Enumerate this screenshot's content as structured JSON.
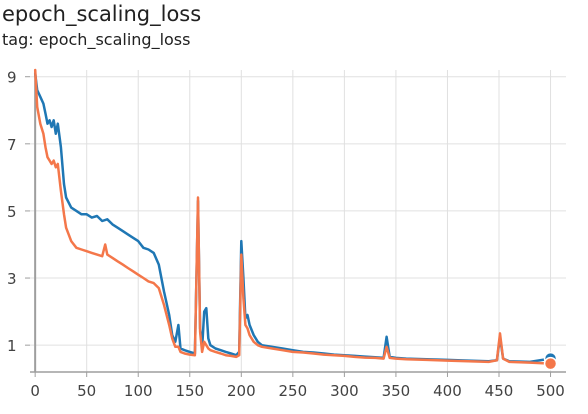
{
  "header": {
    "title": "epoch_scaling_loss",
    "tag": "tag: epoch_scaling_loss"
  },
  "colors": {
    "series_1": "#1f77b4",
    "series_2": "#f4774a",
    "grid": "#e0e0e0",
    "axis": "#9e9e9e"
  },
  "chart_data": {
    "type": "line",
    "title": "epoch_scaling_loss",
    "xlabel": "",
    "ylabel": "",
    "xlim": [
      -5,
      515
    ],
    "ylim": [
      0.2,
      9.2
    ],
    "x_ticks": [
      0,
      50,
      100,
      150,
      200,
      250,
      300,
      350,
      400,
      450,
      500
    ],
    "y_ticks": [
      1,
      3,
      5,
      7,
      9
    ],
    "grid": true,
    "legend": "none",
    "series": [
      {
        "color": "#1f77b4",
        "end_marker": true,
        "points": [
          [
            0,
            9.1
          ],
          [
            2,
            8.6
          ],
          [
            5,
            8.4
          ],
          [
            8,
            8.2
          ],
          [
            10,
            7.9
          ],
          [
            12,
            7.6
          ],
          [
            14,
            7.7
          ],
          [
            16,
            7.5
          ],
          [
            18,
            7.7
          ],
          [
            20,
            7.3
          ],
          [
            22,
            7.6
          ],
          [
            25,
            6.9
          ],
          [
            28,
            5.8
          ],
          [
            30,
            5.4
          ],
          [
            35,
            5.1
          ],
          [
            40,
            5.0
          ],
          [
            45,
            4.9
          ],
          [
            50,
            4.9
          ],
          [
            55,
            4.8
          ],
          [
            60,
            4.85
          ],
          [
            65,
            4.7
          ],
          [
            70,
            4.75
          ],
          [
            75,
            4.6
          ],
          [
            80,
            4.5
          ],
          [
            85,
            4.4
          ],
          [
            90,
            4.3
          ],
          [
            95,
            4.2
          ],
          [
            100,
            4.1
          ],
          [
            105,
            3.9
          ],
          [
            110,
            3.85
          ],
          [
            115,
            3.75
          ],
          [
            120,
            3.4
          ],
          [
            125,
            2.6
          ],
          [
            130,
            1.9
          ],
          [
            133,
            1.3
          ],
          [
            136,
            1.1
          ],
          [
            139,
            1.6
          ],
          [
            141,
            0.9
          ],
          [
            145,
            0.85
          ],
          [
            150,
            0.8
          ],
          [
            155,
            0.75
          ],
          [
            158,
            5.3
          ],
          [
            160,
            1.5
          ],
          [
            162,
            0.9
          ],
          [
            164,
            2.0
          ],
          [
            166,
            2.1
          ],
          [
            168,
            1.2
          ],
          [
            170,
            1.0
          ],
          [
            175,
            0.9
          ],
          [
            180,
            0.85
          ],
          [
            185,
            0.8
          ],
          [
            190,
            0.75
          ],
          [
            195,
            0.7
          ],
          [
            198,
            0.8
          ],
          [
            200,
            4.1
          ],
          [
            202,
            3.0
          ],
          [
            204,
            1.8
          ],
          [
            206,
            1.9
          ],
          [
            208,
            1.6
          ],
          [
            212,
            1.3
          ],
          [
            216,
            1.1
          ],
          [
            220,
            1.0
          ],
          [
            230,
            0.95
          ],
          [
            240,
            0.9
          ],
          [
            250,
            0.85
          ],
          [
            260,
            0.8
          ],
          [
            270,
            0.78
          ],
          [
            280,
            0.75
          ],
          [
            290,
            0.72
          ],
          [
            300,
            0.7
          ],
          [
            310,
            0.68
          ],
          [
            320,
            0.66
          ],
          [
            330,
            0.64
          ],
          [
            338,
            0.62
          ],
          [
            341,
            1.25
          ],
          [
            344,
            0.65
          ],
          [
            350,
            0.62
          ],
          [
            360,
            0.6
          ],
          [
            380,
            0.58
          ],
          [
            400,
            0.56
          ],
          [
            420,
            0.54
          ],
          [
            440,
            0.52
          ],
          [
            448,
            0.55
          ],
          [
            451,
            1.25
          ],
          [
            454,
            0.6
          ],
          [
            460,
            0.52
          ],
          [
            480,
            0.5
          ],
          [
            500,
            0.6
          ]
        ]
      },
      {
        "color": "#f4774a",
        "end_marker": true,
        "points": [
          [
            0,
            9.2
          ],
          [
            2,
            8.1
          ],
          [
            5,
            7.6
          ],
          [
            8,
            7.3
          ],
          [
            10,
            6.9
          ],
          [
            12,
            6.6
          ],
          [
            14,
            6.5
          ],
          [
            16,
            6.4
          ],
          [
            18,
            6.5
          ],
          [
            20,
            6.3
          ],
          [
            22,
            6.4
          ],
          [
            25,
            5.6
          ],
          [
            28,
            4.9
          ],
          [
            30,
            4.5
          ],
          [
            35,
            4.1
          ],
          [
            40,
            3.9
          ],
          [
            45,
            3.85
          ],
          [
            50,
            3.8
          ],
          [
            55,
            3.75
          ],
          [
            60,
            3.7
          ],
          [
            65,
            3.65
          ],
          [
            68,
            4.0
          ],
          [
            70,
            3.7
          ],
          [
            75,
            3.6
          ],
          [
            80,
            3.5
          ],
          [
            85,
            3.4
          ],
          [
            90,
            3.3
          ],
          [
            95,
            3.2
          ],
          [
            100,
            3.1
          ],
          [
            105,
            3.0
          ],
          [
            110,
            2.9
          ],
          [
            115,
            2.85
          ],
          [
            120,
            2.7
          ],
          [
            125,
            2.2
          ],
          [
            130,
            1.6
          ],
          [
            133,
            1.2
          ],
          [
            136,
            0.95
          ],
          [
            139,
            0.95
          ],
          [
            141,
            0.8
          ],
          [
            145,
            0.75
          ],
          [
            150,
            0.72
          ],
          [
            155,
            0.7
          ],
          [
            158,
            5.4
          ],
          [
            160,
            1.4
          ],
          [
            162,
            0.8
          ],
          [
            164,
            1.1
          ],
          [
            166,
            1.0
          ],
          [
            168,
            0.9
          ],
          [
            170,
            0.85
          ],
          [
            175,
            0.8
          ],
          [
            180,
            0.75
          ],
          [
            185,
            0.7
          ],
          [
            190,
            0.68
          ],
          [
            195,
            0.65
          ],
          [
            198,
            0.7
          ],
          [
            200,
            3.7
          ],
          [
            202,
            2.4
          ],
          [
            204,
            1.6
          ],
          [
            206,
            1.5
          ],
          [
            208,
            1.3
          ],
          [
            212,
            1.1
          ],
          [
            216,
            1.0
          ],
          [
            220,
            0.95
          ],
          [
            230,
            0.9
          ],
          [
            240,
            0.85
          ],
          [
            250,
            0.8
          ],
          [
            260,
            0.78
          ],
          [
            270,
            0.75
          ],
          [
            280,
            0.72
          ],
          [
            290,
            0.7
          ],
          [
            300,
            0.68
          ],
          [
            310,
            0.65
          ],
          [
            320,
            0.63
          ],
          [
            330,
            0.62
          ],
          [
            338,
            0.6
          ],
          [
            341,
            0.95
          ],
          [
            344,
            0.62
          ],
          [
            350,
            0.6
          ],
          [
            360,
            0.58
          ],
          [
            380,
            0.56
          ],
          [
            400,
            0.54
          ],
          [
            420,
            0.52
          ],
          [
            440,
            0.5
          ],
          [
            448,
            0.55
          ],
          [
            451,
            1.35
          ],
          [
            454,
            0.6
          ],
          [
            460,
            0.5
          ],
          [
            480,
            0.48
          ],
          [
            500,
            0.45
          ]
        ]
      }
    ]
  }
}
